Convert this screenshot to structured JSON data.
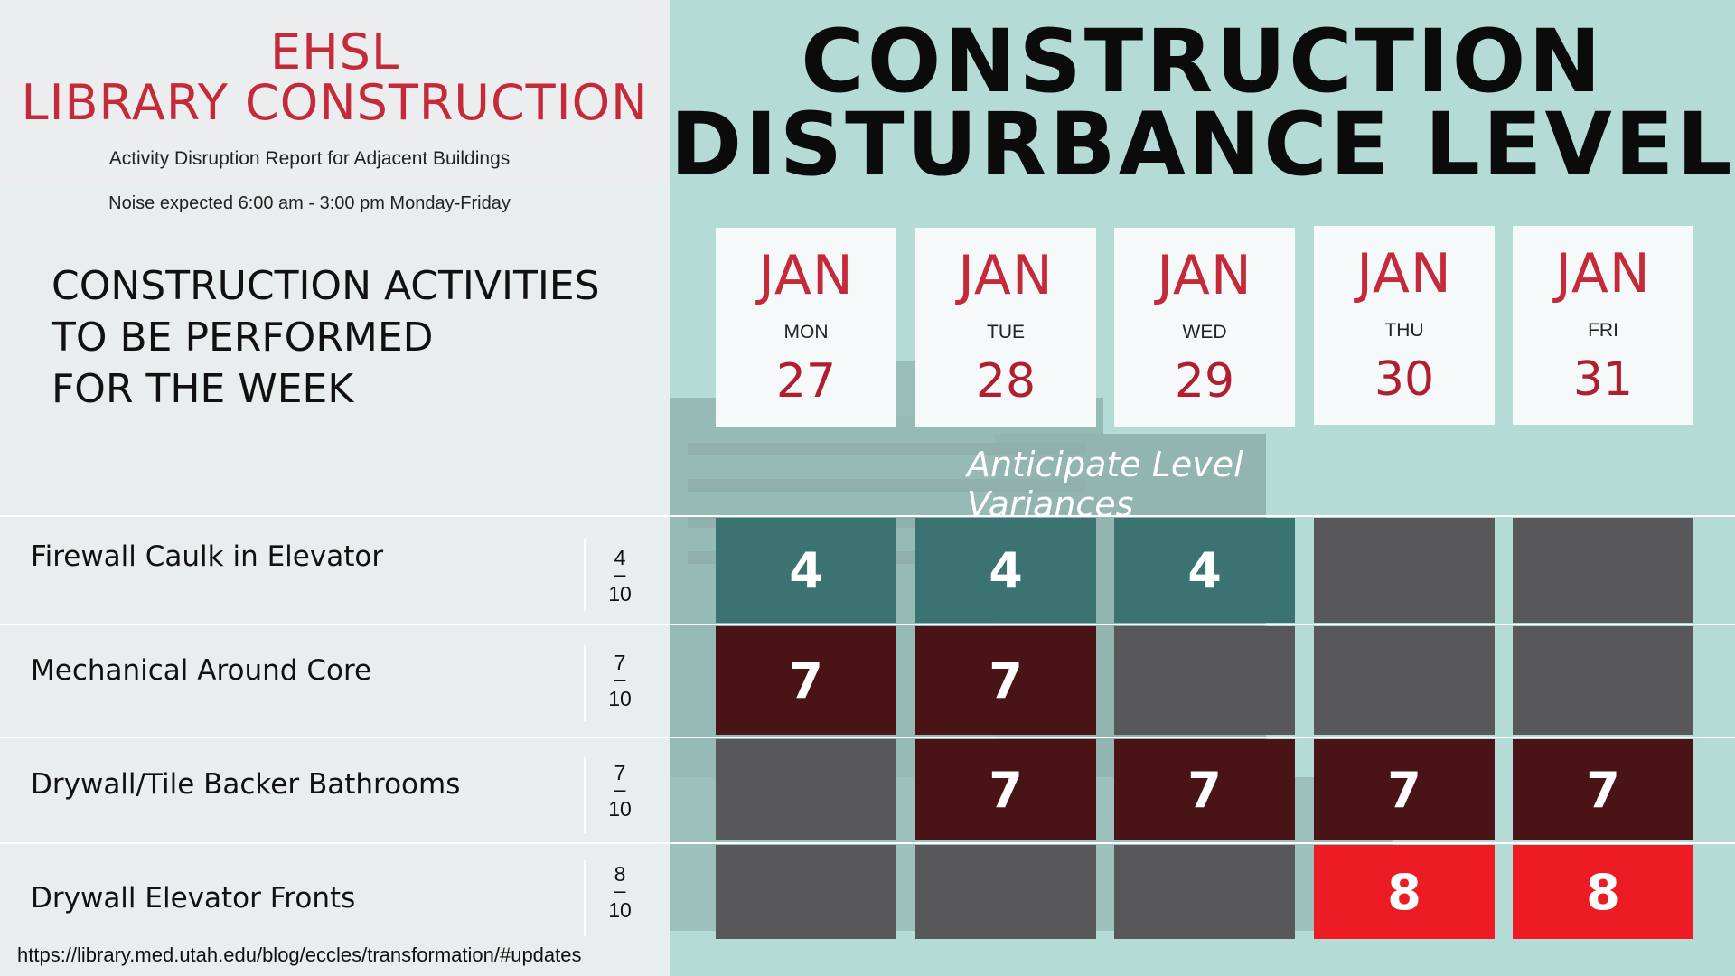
{
  "header": {
    "title_line1": "EHSL",
    "title_line2": "LIBRARY CONSTRUCTION",
    "subtitle": "Activity Disruption Report for Adjacent Buildings",
    "noise_note": "Noise expected 6:00 am - 3:00 pm Monday-Friday"
  },
  "activities_heading": [
    "CONSTRUCTION ACTIVITIES",
    "TO BE PERFORMED",
    "FOR THE WEEK"
  ],
  "main_title": [
    "CONSTRUCTION",
    "DISTURBANCE LEVEL"
  ],
  "days": [
    {
      "month": "JAN",
      "weekday": "MON",
      "date": "27"
    },
    {
      "month": "JAN",
      "weekday": "TUE",
      "date": "28"
    },
    {
      "month": "JAN",
      "weekday": "WED",
      "date": "29"
    },
    {
      "month": "JAN",
      "weekday": "THU",
      "date": "30"
    },
    {
      "month": "JAN",
      "weekday": "FRI",
      "date": "31"
    }
  ],
  "variance_note": "Anticipate Level Variances",
  "activities": [
    {
      "name": "Firewall Caulk in Elevator",
      "level_num": "4",
      "level_den": "10",
      "cells": [
        {
          "value": "4",
          "style": "teal"
        },
        {
          "value": "4",
          "style": "teal"
        },
        {
          "value": "4",
          "style": "teal"
        },
        {
          "value": "",
          "style": "gray"
        },
        {
          "value": "",
          "style": "gray"
        }
      ]
    },
    {
      "name": "Mechanical Around Core",
      "level_num": "7",
      "level_den": "10",
      "cells": [
        {
          "value": "7",
          "style": "maroon"
        },
        {
          "value": "7",
          "style": "maroon"
        },
        {
          "value": "",
          "style": "gray"
        },
        {
          "value": "",
          "style": "gray"
        },
        {
          "value": "",
          "style": "gray"
        }
      ]
    },
    {
      "name": "Drywall/Tile Backer Bathrooms",
      "level_num": "7",
      "level_den": "10",
      "cells": [
        {
          "value": "",
          "style": "gray"
        },
        {
          "value": "7",
          "style": "maroon"
        },
        {
          "value": "7",
          "style": "maroon"
        },
        {
          "value": "7",
          "style": "maroon"
        },
        {
          "value": "7",
          "style": "maroon"
        }
      ]
    },
    {
      "name": "Drywall Elevator Fronts",
      "level_num": "8",
      "level_den": "10",
      "cells": [
        {
          "value": "",
          "style": "gray"
        },
        {
          "value": "",
          "style": "gray"
        },
        {
          "value": "",
          "style": "gray"
        },
        {
          "value": "8",
          "style": "red"
        },
        {
          "value": "8",
          "style": "red"
        }
      ]
    }
  ],
  "colors": {
    "accent_red": "#c42a3a",
    "panel_teal": "#b5dbd6",
    "level_teal": "#3b7373",
    "level_maroon": "#4a1416",
    "level_gray": "#58585b",
    "level_red": "#ed1c24"
  },
  "url": "https://library.med.utah.edu/blog/eccles/transformation/#updates"
}
